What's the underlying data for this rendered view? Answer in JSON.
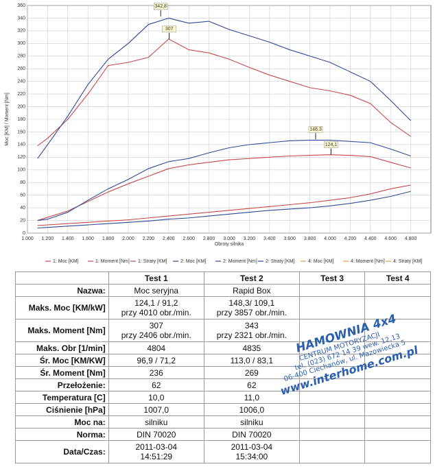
{
  "chart_data": {
    "type": "line",
    "ylabel": "Moc [KM] / Moment [Nm]",
    "xlabel": "Obroty silnika",
    "x": [
      1100,
      1200,
      1400,
      1600,
      1800,
      2000,
      2200,
      2400,
      2600,
      2800,
      3000,
      3200,
      3400,
      3600,
      3800,
      4000,
      4200,
      4400,
      4600,
      4800
    ],
    "xlim": [
      1000,
      5000
    ],
    "xticks": [
      {
        "value": 1000,
        "label": "1.000"
      },
      {
        "value": 1200,
        "label": "1.200"
      },
      {
        "value": 1400,
        "label": "1.400"
      },
      {
        "value": 1600,
        "label": "1.600"
      },
      {
        "value": 1800,
        "label": "1.800"
      },
      {
        "value": 2000,
        "label": "2.000"
      },
      {
        "value": 2200,
        "label": "2.200"
      },
      {
        "value": 2400,
        "label": "2.400"
      },
      {
        "value": 2600,
        "label": "2.600"
      },
      {
        "value": 2800,
        "label": "2.800"
      },
      {
        "value": 3000,
        "label": "3.000"
      },
      {
        "value": 3200,
        "label": "3.200"
      },
      {
        "value": 3400,
        "label": "3.400"
      },
      {
        "value": 3600,
        "label": "3.600"
      },
      {
        "value": 3800,
        "label": "3.800"
      },
      {
        "value": 4000,
        "label": "4.000"
      },
      {
        "value": 4200,
        "label": "4.200"
      },
      {
        "value": 4400,
        "label": "4.400"
      },
      {
        "value": 4600,
        "label": "4.600"
      },
      {
        "value": 4800,
        "label": "4.800"
      }
    ],
    "ylim": [
      0,
      360
    ],
    "yticks": [
      0,
      20,
      40,
      60,
      80,
      100,
      120,
      140,
      160,
      180,
      200,
      220,
      240,
      260,
      280,
      300,
      320,
      340,
      360
    ],
    "grid": true,
    "series": [
      {
        "name": "1: Moc [KM]",
        "color": "#c8484a",
        "values": [
          20,
          25,
          35,
          50,
          65,
          78,
          90,
          102,
          108,
          112,
          116,
          118,
          120,
          122,
          123,
          124,
          123,
          121,
          112,
          103
        ]
      },
      {
        "name": "1: Moment [Nm]",
        "color": "#c8484a",
        "values": [
          138,
          150,
          180,
          220,
          265,
          270,
          278,
          307,
          290,
          285,
          275,
          262,
          250,
          240,
          230,
          225,
          218,
          205,
          175,
          153
        ]
      },
      {
        "name": "1: Straty [KM]",
        "color": "#c8484a",
        "values": [
          12,
          13,
          15,
          17,
          19,
          21,
          24,
          27,
          30,
          33,
          36,
          39,
          42,
          45,
          48,
          52,
          56,
          62,
          70,
          76
        ]
      },
      {
        "name": "2: Moc [KM]",
        "color": "#2c4a9a",
        "values": [
          20,
          22,
          33,
          52,
          70,
          85,
          102,
          113,
          118,
          127,
          135,
          140,
          143,
          146,
          147,
          147,
          145,
          143,
          133,
          122
        ]
      },
      {
        "name": "2: Moment [Nm]",
        "color": "#2c4a9a",
        "values": [
          118,
          140,
          185,
          235,
          275,
          300,
          330,
          340,
          332,
          335,
          322,
          312,
          302,
          290,
          280,
          270,
          255,
          240,
          210,
          178
        ]
      },
      {
        "name": "2: Straty [KM]",
        "color": "#2c4a9a",
        "values": [
          8,
          9,
          11,
          13,
          15,
          17,
          19,
          22,
          24,
          27,
          30,
          33,
          36,
          38,
          40,
          43,
          47,
          52,
          58,
          66
        ]
      },
      {
        "name": "4: Moc [KM]",
        "color": "#e89a50",
        "values": [
          null,
          null,
          null,
          null,
          null,
          null,
          null,
          null,
          null,
          null,
          null,
          null,
          null,
          null,
          null,
          null,
          null,
          null,
          null,
          null
        ]
      },
      {
        "name": "4: Moment [Nm]",
        "color": "#e89a50",
        "values": [
          null,
          null,
          null,
          null,
          null,
          null,
          null,
          null,
          null,
          null,
          null,
          null,
          null,
          null,
          null,
          null,
          null,
          null,
          null,
          null
        ]
      },
      {
        "name": "4: Straty [KM]",
        "color": "#e89a50",
        "values": [
          null,
          null,
          null,
          null,
          null,
          null,
          null,
          null,
          null,
          null,
          null,
          null,
          null,
          null,
          null,
          null,
          null,
          null,
          null,
          null
        ]
      }
    ],
    "annotations": [
      {
        "label": "342,8",
        "x": 2321,
        "y": 342.8
      },
      {
        "label": "307",
        "x": 2406,
        "y": 307
      },
      {
        "label": "148,3",
        "x": 3857,
        "y": 148.3
      },
      {
        "label": "124,1",
        "x": 4010,
        "y": 124.1
      }
    ]
  },
  "table": {
    "headers": [
      "Test 1",
      "Test 2",
      "Test 3",
      "Test 4"
    ],
    "rows": [
      {
        "label": "Nazwa:",
        "cells": [
          [
            "Moc seryjna"
          ],
          [
            "Rapid Box"
          ]
        ]
      },
      {
        "label": "Maks. Moc [KM/kW]",
        "cells": [
          [
            "124,1 / 91,2",
            "przy 4010 obr./min."
          ],
          [
            "148,3/ 109,1",
            "przy 3857 obr./min."
          ]
        ]
      },
      {
        "label": "Maks. Moment [Nm]",
        "cells": [
          [
            "307",
            "przy 2406 obr./min."
          ],
          [
            "343",
            "przy 2321 obr./min."
          ]
        ]
      },
      {
        "label": "Maks. Obr [1/min]",
        "cells": [
          [
            "4804"
          ],
          [
            "4835"
          ]
        ]
      },
      {
        "label": "Śr. Moc [KM/KW]",
        "cells": [
          [
            "96,9 / 71,2"
          ],
          [
            "113,0 / 83,1"
          ]
        ]
      },
      {
        "label": "Śr. Moment [Nm]",
        "cells": [
          [
            "236"
          ],
          [
            "269"
          ]
        ]
      },
      {
        "label": "Przełożenie:",
        "cells": [
          [
            "62"
          ],
          [
            "62"
          ]
        ]
      },
      {
        "label": "Temperatura [C]",
        "cells": [
          [
            "10,0"
          ],
          [
            "11,0"
          ]
        ]
      },
      {
        "label": "Ciśnienie [hPa]",
        "cells": [
          [
            "1007,0"
          ],
          [
            "1006,0"
          ]
        ]
      },
      {
        "label": "Moc na:",
        "cells": [
          [
            "silniku"
          ],
          [
            "silniku"
          ]
        ]
      },
      {
        "label": "Norma:",
        "cells": [
          [
            "DIN 70020"
          ],
          [
            "DIN 70020"
          ]
        ]
      },
      {
        "label": "Data/Czas:",
        "cells": [
          [
            "2011-03-04",
            "14:51:29"
          ],
          [
            "2011-03-04",
            "15:34:00"
          ]
        ]
      }
    ]
  },
  "stamp": {
    "title": "HAMOWNIA 4x4",
    "line1": "CENTRUM MOTORYZACJI",
    "line2": "tel. (023) 672 14 39 wew. 12,13",
    "line3": "06-400 Ciechanów, ul. Mazowiecka 5",
    "web": "www.interhome.com.pl"
  }
}
